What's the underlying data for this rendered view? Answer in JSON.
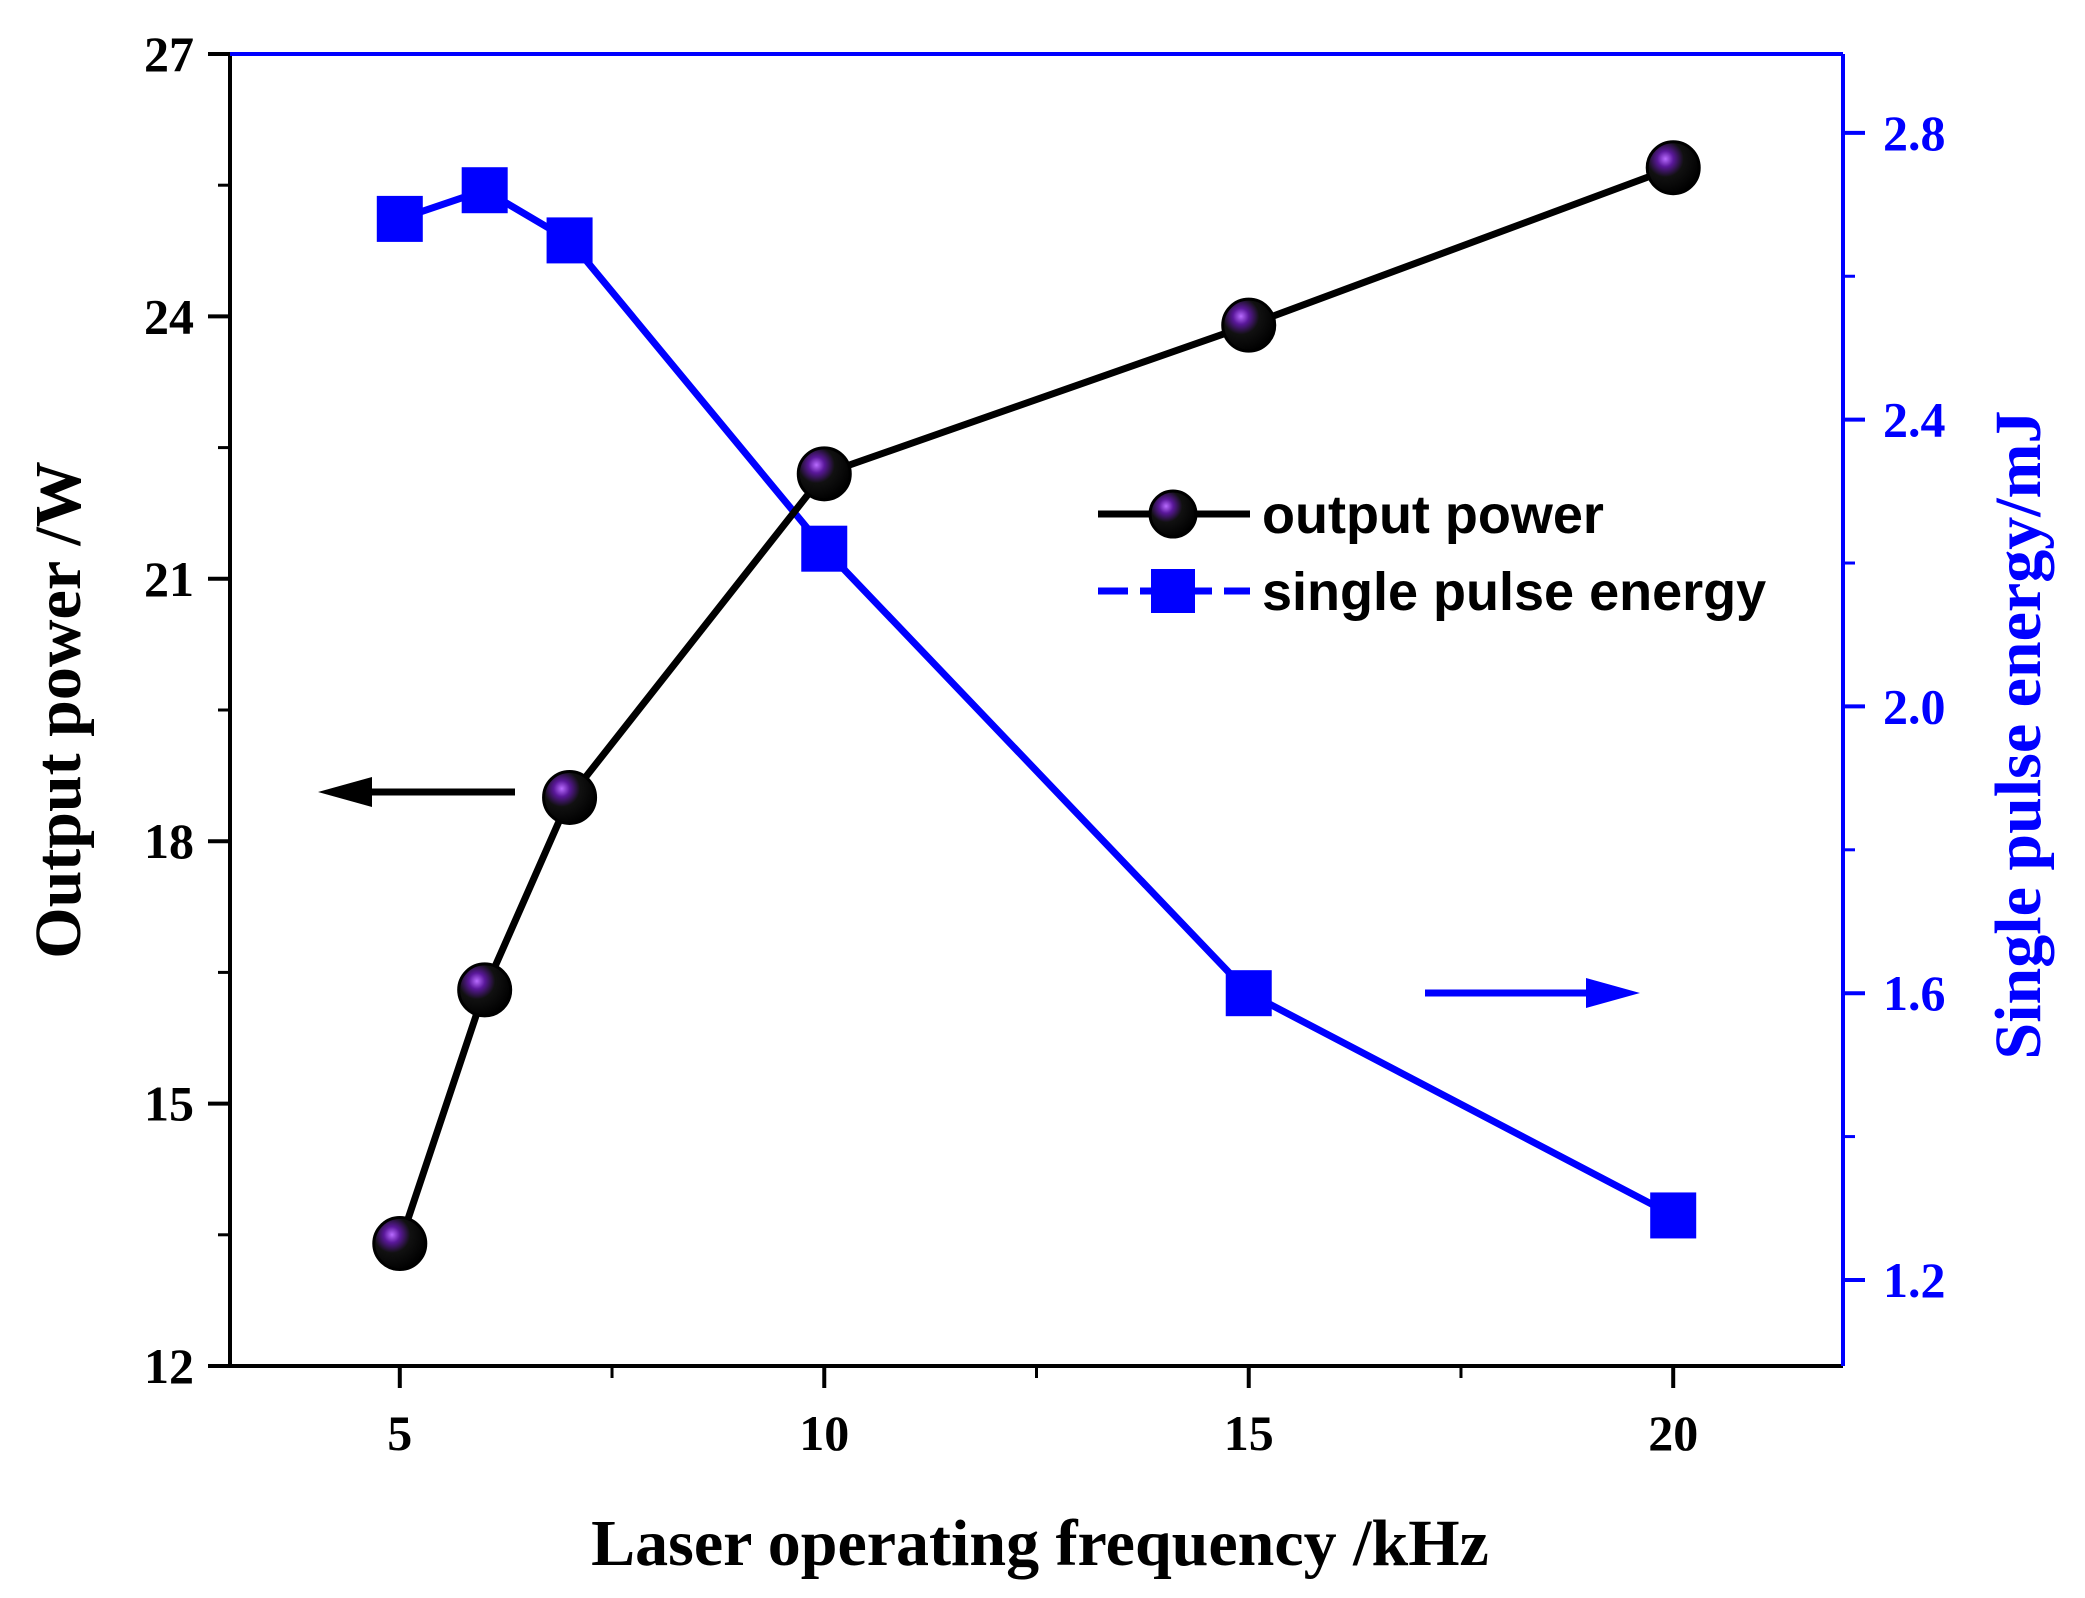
{
  "chart_data": {
    "type": "line",
    "title": "",
    "xlabel": "Laser operating frequency /kHz",
    "ylabel": "Output power /W",
    "y2label": "Single pulse energy/mJ",
    "xlim": [
      3,
      22
    ],
    "ylim": [
      12,
      27
    ],
    "y2lim": [
      1.08,
      2.91
    ],
    "x_ticks": [
      5,
      10,
      15,
      20
    ],
    "x_tick_labels": [
      "5",
      "10",
      "15",
      "20"
    ],
    "y_ticks": [
      12,
      15,
      18,
      21,
      24,
      27
    ],
    "y_tick_labels": [
      "12",
      "15",
      "18",
      "21",
      "24",
      "27"
    ],
    "y2_ticks": [
      1.2,
      1.6,
      2.0,
      2.4,
      2.8
    ],
    "y2_tick_labels": [
      "1.2",
      "1.6",
      "2.0",
      "2.4",
      "2.8"
    ],
    "legend_position": "center-right",
    "series": [
      {
        "name": "output power",
        "axis": "left",
        "color": "#000000",
        "marker": "sphere",
        "x": [
          5,
          6,
          7,
          10,
          15,
          20
        ],
        "values": [
          13.4,
          16.3,
          18.5,
          22.2,
          23.9,
          25.7
        ]
      },
      {
        "name": "single pulse energy",
        "axis": "right",
        "color": "#0000FF",
        "marker": "square",
        "x": [
          5,
          6,
          7,
          10,
          15,
          20
        ],
        "values": [
          2.68,
          2.72,
          2.65,
          2.22,
          1.6,
          1.29
        ]
      }
    ],
    "annotations": [
      {
        "type": "arrow",
        "direction": "left",
        "color": "#000000",
        "meaning": "output power uses left axis"
      },
      {
        "type": "arrow",
        "direction": "right",
        "color": "#0000FF",
        "meaning": "single pulse energy uses right axis"
      }
    ]
  }
}
